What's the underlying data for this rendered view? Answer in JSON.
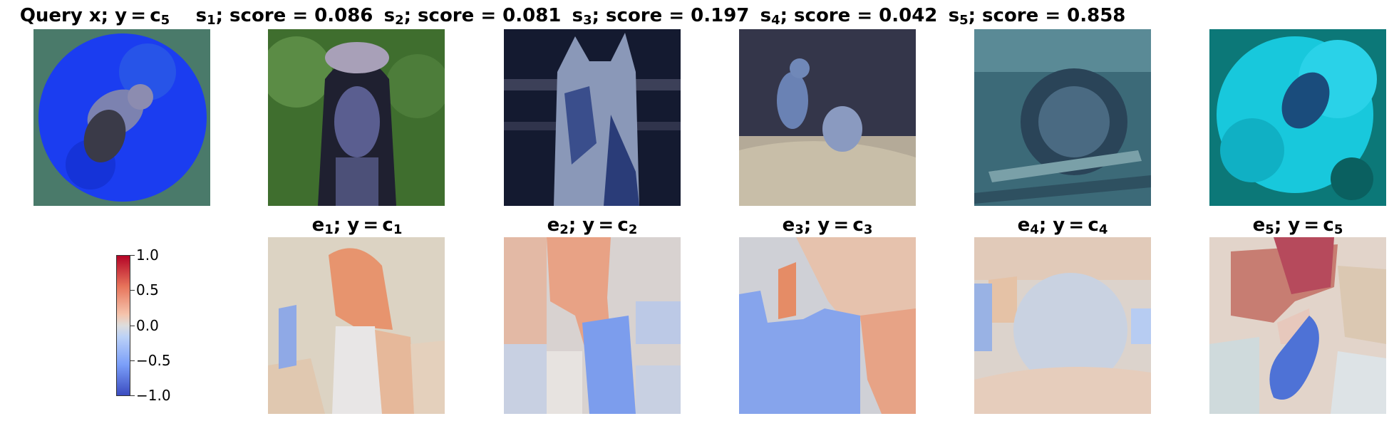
{
  "query": {
    "prefix": "Query x; y = c",
    "sub": "5"
  },
  "similar": [
    {
      "s": "s",
      "i": "1",
      "score_text": "; score = 0.086"
    },
    {
      "s": "s",
      "i": "2",
      "score_text": "; score = 0.081"
    },
    {
      "s": "s",
      "i": "3",
      "score_text": "; score = 0.197"
    },
    {
      "s": "s",
      "i": "4",
      "score_text": "; score = 0.042"
    },
    {
      "s": "s",
      "i": "5",
      "score_text": "; score = 0.858"
    }
  ],
  "explanations": [
    {
      "e": "e",
      "i": "1",
      "mid": "; y = c",
      "j": "1"
    },
    {
      "e": "e",
      "i": "2",
      "mid": "; y = c",
      "j": "2"
    },
    {
      "e": "e",
      "i": "3",
      "mid": "; y = c",
      "j": "3"
    },
    {
      "e": "e",
      "i": "4",
      "mid": "; y = c",
      "j": "4"
    },
    {
      "e": "e",
      "i": "5",
      "mid": "; y = c",
      "j": "5"
    }
  ],
  "colorbar": {
    "ticks": [
      "1.0",
      "0.5",
      "0.0",
      "−0.5",
      "−1.0"
    ]
  },
  "colors": {
    "positive": "#b40426",
    "neutral": "#dddddd",
    "negative": "#3b4cc0"
  }
}
